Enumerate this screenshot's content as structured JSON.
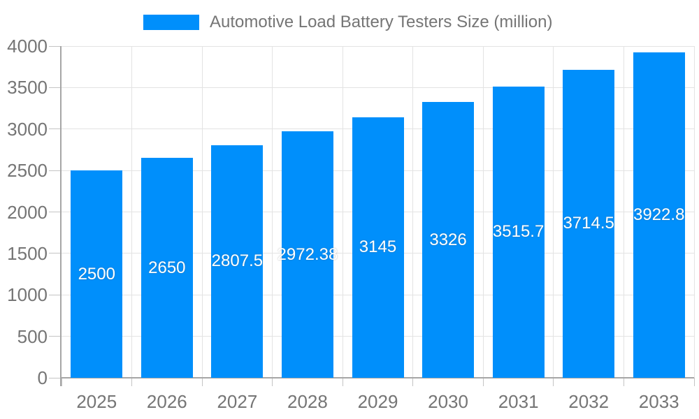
{
  "chart_data": {
    "type": "bar",
    "title": "Automotive Load Battery Testers Size (million)",
    "categories": [
      "2025",
      "2026",
      "2027",
      "2028",
      "2029",
      "2030",
      "2031",
      "2032",
      "2033"
    ],
    "series": [
      {
        "name": "Automotive Load Battery Testers Size (million)",
        "values": [
          2500,
          2650,
          2807.5,
          2972.38,
          3145,
          3326,
          3515.7,
          3714.5,
          3922.8
        ]
      }
    ],
    "value_labels": [
      "2500",
      "2650",
      "2807.5",
      "2972.38",
      "3145",
      "3326",
      "3515.7",
      "3714.5",
      "3922.8"
    ],
    "ytick_labels": [
      "0",
      "500",
      "1000",
      "1500",
      "2000",
      "2500",
      "3000",
      "3500",
      "4000"
    ],
    "ylim": [
      0,
      4000
    ],
    "ytick_step": 500,
    "grid": "horizontal-and-vertical",
    "legend_position": "top",
    "xlabel": "",
    "ylabel": "",
    "colors": {
      "bar": "#008FFB",
      "axis_text": "#757575",
      "grid_line": "#e3e3e3",
      "axis_line": "#a6a6a6",
      "tick_line": "#c4c4c4",
      "value_label": "#ffffff",
      "background": "#ffffff"
    }
  }
}
